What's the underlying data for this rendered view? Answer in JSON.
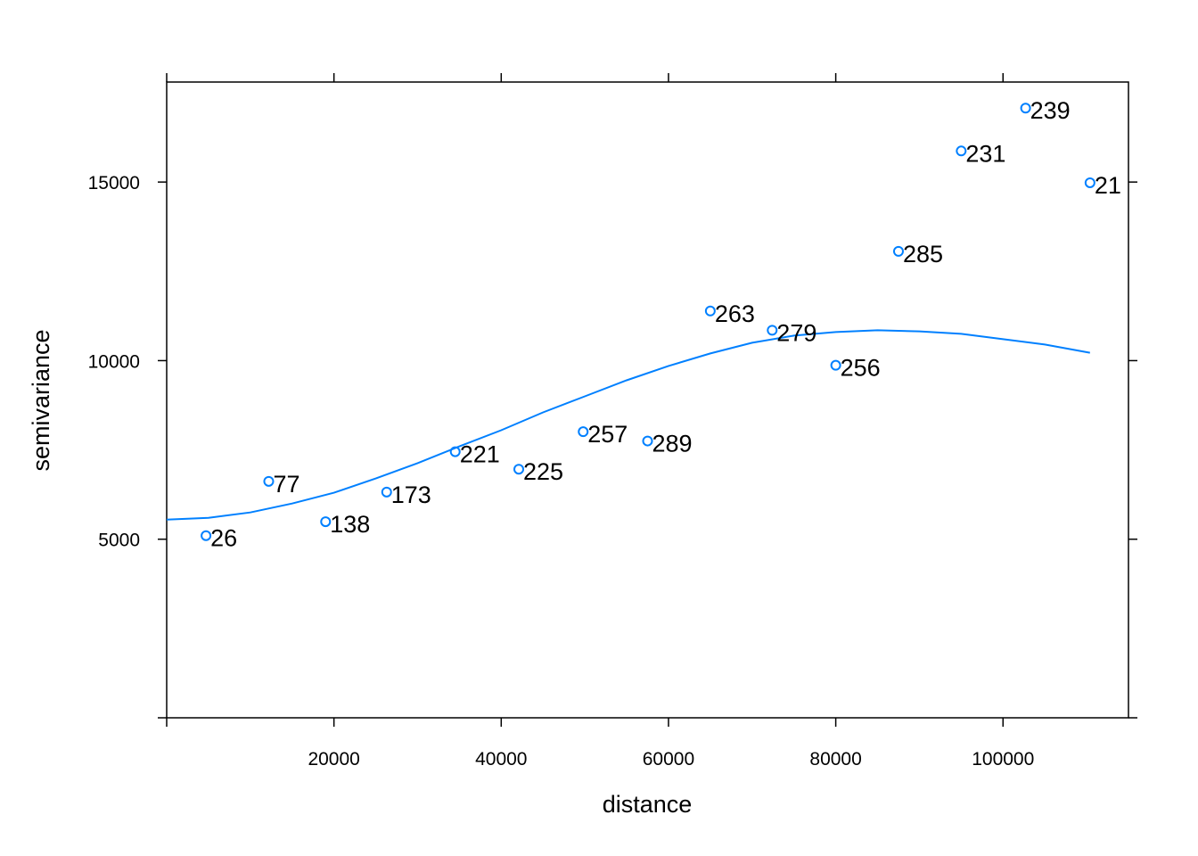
{
  "chart_data": {
    "type": "scatter",
    "xlabel": "distance",
    "ylabel": "semivariance",
    "xlim": [
      0,
      115000
    ],
    "ylim": [
      0,
      17800
    ],
    "x_ticks_bottom": [
      20000,
      40000,
      60000,
      80000,
      100000
    ],
    "x_ticks_top": [
      20000,
      40000,
      60000,
      80000,
      100000
    ],
    "x_ticks_extra": [
      0
    ],
    "y_ticks_left": [
      5000,
      10000,
      15000
    ],
    "y_ticks_extra": [
      0
    ],
    "grid": false,
    "colors": {
      "points": "#0080ff",
      "line": "#0080ff",
      "axes": "#000000"
    },
    "points": [
      {
        "x": 4700,
        "y": 5100,
        "label": "26"
      },
      {
        "x": 12200,
        "y": 6620,
        "label": "77"
      },
      {
        "x": 19000,
        "y": 5490,
        "label": "138"
      },
      {
        "x": 26300,
        "y": 6320,
        "label": "173"
      },
      {
        "x": 34500,
        "y": 7450,
        "label": "221"
      },
      {
        "x": 42100,
        "y": 6960,
        "label": "225"
      },
      {
        "x": 49800,
        "y": 8010,
        "label": "257"
      },
      {
        "x": 57500,
        "y": 7750,
        "label": "289"
      },
      {
        "x": 65000,
        "y": 11390,
        "label": "263"
      },
      {
        "x": 72400,
        "y": 10850,
        "label": "279"
      },
      {
        "x": 80000,
        "y": 9870,
        "label": "256"
      },
      {
        "x": 87500,
        "y": 13060,
        "label": "285"
      },
      {
        "x": 95000,
        "y": 15870,
        "label": "231"
      },
      {
        "x": 102700,
        "y": 17070,
        "label": "239"
      },
      {
        "x": 110400,
        "y": 14980,
        "label": "21"
      }
    ],
    "fit_line": {
      "x": [
        0,
        5000,
        10000,
        15000,
        20000,
        25000,
        30000,
        35000,
        40000,
        45000,
        50000,
        55000,
        60000,
        65000,
        70000,
        75000,
        80000,
        85000,
        90000,
        95000,
        100000,
        105000,
        110400
      ],
      "y": [
        5550,
        5600,
        5750,
        6000,
        6300,
        6700,
        7130,
        7600,
        8050,
        8550,
        9000,
        9450,
        9850,
        10200,
        10500,
        10700,
        10800,
        10850,
        10820,
        10750,
        10600,
        10450,
        10220
      ]
    }
  }
}
